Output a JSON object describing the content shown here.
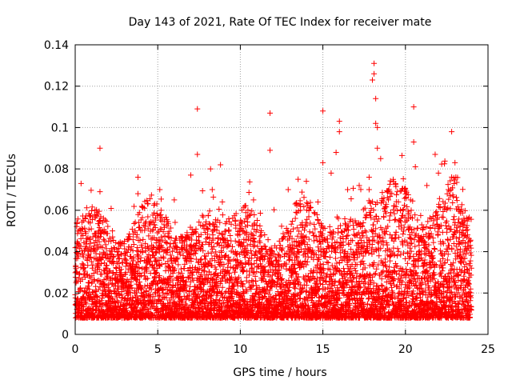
{
  "chart_data": {
    "type": "scatter",
    "title": "Day 143 of 2021, Rate Of TEC Index for receiver mate",
    "xlabel": "GPS time / hours",
    "ylabel": "ROTI / TECUs",
    "xlim": [
      0,
      25
    ],
    "ylim": [
      0,
      0.14
    ],
    "x_ticks": [
      0,
      5,
      10,
      15,
      20,
      25
    ],
    "y_ticks": [
      0,
      0.02,
      0.04,
      0.06,
      0.08,
      0.1,
      0.12,
      0.14
    ],
    "x_tick_labels": [
      "0",
      "5",
      "10",
      "15",
      "20",
      "25"
    ],
    "y_tick_labels": [
      "0",
      "0.02",
      "0.04",
      "0.06",
      "0.08",
      "0.1",
      "0.12",
      "0.14"
    ],
    "grid": true,
    "marker": "+",
    "series": [
      {
        "name": "ROTI",
        "color": "#ff0000",
        "x_range": [
          0,
          24
        ],
        "typical_range": [
          0.008,
          0.05
        ],
        "x": [
          0.1,
          0.2,
          0.5,
          1.2,
          1.5,
          1.5,
          3.8,
          3.8,
          5.2,
          6.0,
          7.0,
          7.4,
          7.4,
          8.2,
          8.3,
          8.8,
          10.8,
          11.8,
          11.8,
          12.9,
          13.5,
          14.0,
          14.7,
          15.0,
          15.0,
          15.5,
          15.8,
          16.0,
          16.0,
          16.5,
          17.2,
          17.8,
          17.8,
          18.0,
          18.1,
          18.1,
          18.2,
          18.2,
          18.3,
          18.3,
          18.5,
          20.5,
          20.5,
          20.6,
          21.3,
          21.8,
          22.0,
          22.6,
          22.8,
          23.0,
          23.6
        ],
        "y": [
          0.054,
          0.05,
          0.055,
          0.06,
          0.09,
          0.069,
          0.076,
          0.068,
          0.06,
          0.065,
          0.077,
          0.109,
          0.087,
          0.08,
          0.07,
          0.082,
          0.065,
          0.107,
          0.089,
          0.07,
          0.075,
          0.074,
          0.064,
          0.108,
          0.083,
          0.078,
          0.088,
          0.103,
          0.098,
          0.07,
          0.072,
          0.07,
          0.076,
          0.123,
          0.131,
          0.126,
          0.114,
          0.102,
          0.1,
          0.09,
          0.085,
          0.11,
          0.093,
          0.081,
          0.072,
          0.087,
          0.078,
          0.07,
          0.098,
          0.083,
          0.055
        ]
      }
    ]
  }
}
